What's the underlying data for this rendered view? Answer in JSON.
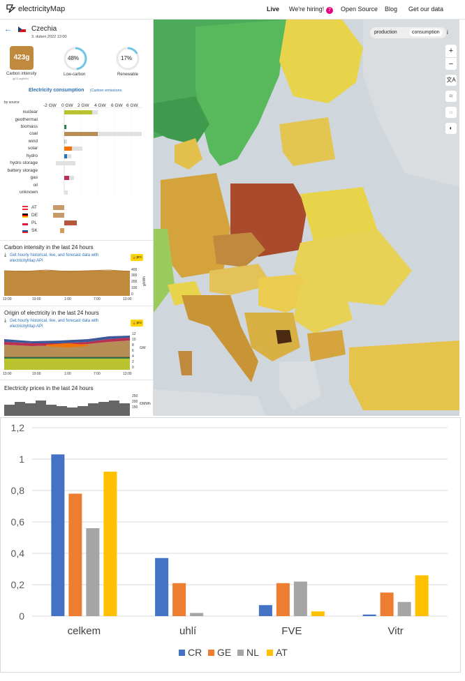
{
  "nav": {
    "logo_text": "electricityMap",
    "live": "Live",
    "hiring": "We're hiring!",
    "hiring_count": "7",
    "open_source": "Open Source",
    "blog": "Blog",
    "get_data": "Get our data"
  },
  "panel": {
    "country": "Czechia",
    "datetime": "3. duben 2022 13:00",
    "carbon_value": "423g",
    "carbon_label": "Carbon intensity",
    "carbon_unit": "(gCO₂eq/kWh)",
    "lowcarbon_value": "48%",
    "lowcarbon_label": "Low-carbon",
    "renewable_value": "17%",
    "renewable_label": "Renewable",
    "tab_consumption": "Electricity consumption",
    "tab_emissions": "Carbon emissions",
    "by_source": "by source",
    "gw_ticks": [
      "-2 GW",
      "0 GW",
      "2 GW",
      "4 GW",
      "6 GW"
    ],
    "sources": [
      "nuclear",
      "geothermal",
      "biomass",
      "coal",
      "wind",
      "solar",
      "hydro",
      "hydro storage",
      "battery storage",
      "gas",
      "oil",
      "unknown"
    ],
    "exchanges": [
      "AT",
      "DE",
      "PL",
      "SK"
    ],
    "ci_title": "Carbon intensity in the last 24 hours",
    "ci_link": "Get hourly historical, live, and forecast data with electricityMap API",
    "ci_yticks": [
      "400",
      "300",
      "200",
      "100",
      "0"
    ],
    "ci_unit": "g/kWh",
    "origin_title": "Origin of electricity in the last 24 hours",
    "origin_link": "Get hourly historical, live, and forecast data with electricityMap API",
    "origin_yticks": [
      "12",
      "10",
      "8",
      "6",
      "4",
      "2",
      "0"
    ],
    "origin_unit": "GW",
    "price_title": "Electricity prices in the last 24 hours",
    "price_yticks": [
      "250",
      "200",
      "150"
    ],
    "price_unit": "€/MWh",
    "time_ticks": [
      "13:00",
      "19:00",
      "1:00",
      "7:00",
      "13:00"
    ],
    "pro_label": "pro"
  },
  "map": {
    "toggle_production": "production",
    "toggle_consumption": "consumption",
    "info": "i",
    "zoom_in": "+",
    "zoom_out": "−"
  },
  "chart_data": {
    "type": "bar",
    "categories": [
      "celkem",
      "uhlí",
      "FVE",
      "Vitr"
    ],
    "series": [
      {
        "name": "CR",
        "color": "#4472c4",
        "values": [
          1.03,
          0.37,
          0.07,
          0.01
        ]
      },
      {
        "name": "GE",
        "color": "#ed7d31",
        "values": [
          0.78,
          0.21,
          0.21,
          0.15
        ]
      },
      {
        "name": "NL",
        "color": "#a5a5a5",
        "values": [
          0.56,
          0.02,
          0.22,
          0.09
        ]
      },
      {
        "name": "AT",
        "color": "#ffc000",
        "values": [
          0.92,
          0,
          0.03,
          0.26
        ]
      }
    ],
    "ylim": [
      0,
      1.2
    ],
    "yticks": [
      "0",
      "0,2",
      "0,4",
      "0,6",
      "0,8",
      "1",
      "1,2"
    ],
    "legend": "bottom"
  }
}
